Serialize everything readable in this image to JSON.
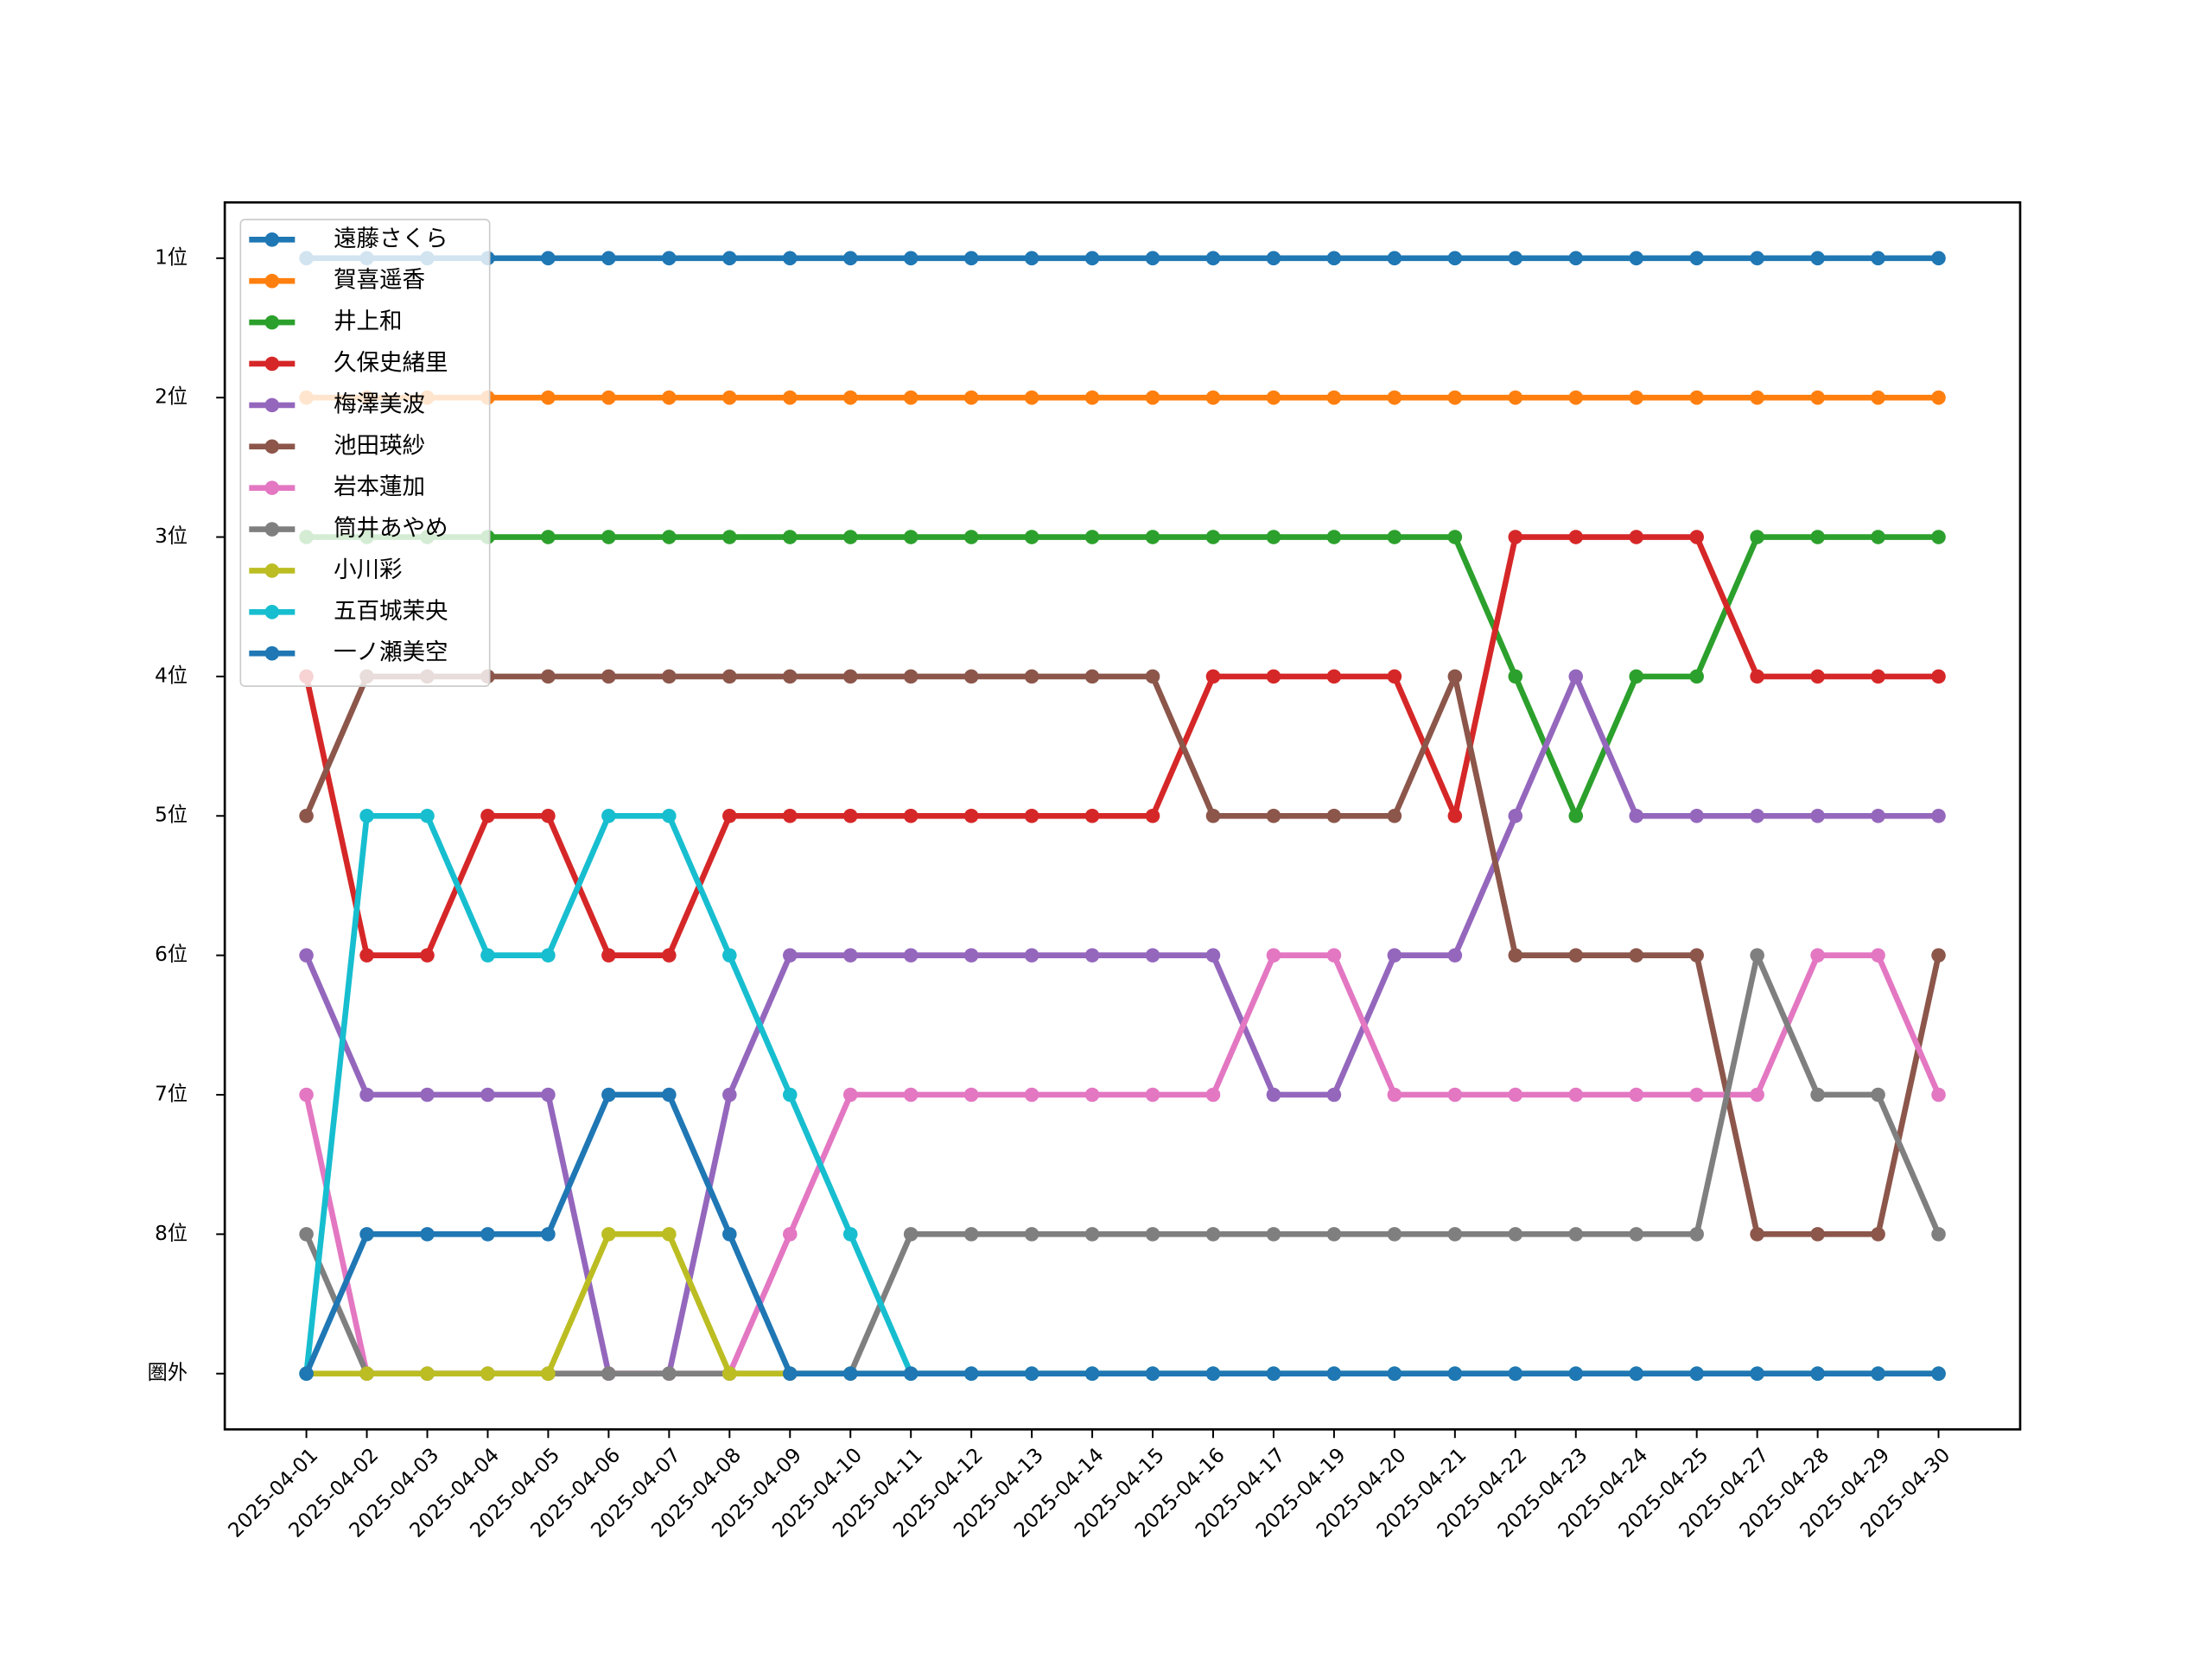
{
  "chart_data": {
    "type": "line",
    "categories": [
      "2025-04-01",
      "2025-04-02",
      "2025-04-03",
      "2025-04-04",
      "2025-04-05",
      "2025-04-06",
      "2025-04-07",
      "2025-04-08",
      "2025-04-09",
      "2025-04-10",
      "2025-04-11",
      "2025-04-12",
      "2025-04-13",
      "2025-04-14",
      "2025-04-15",
      "2025-04-16",
      "2025-04-17",
      "2025-04-19",
      "2025-04-20",
      "2025-04-21",
      "2025-04-22",
      "2025-04-23",
      "2025-04-24",
      "2025-04-25",
      "2025-04-27",
      "2025-04-28",
      "2025-04-29",
      "2025-04-30"
    ],
    "series": [
      {
        "name": "遠藤さくら",
        "color": "#1f77b4",
        "values": [
          1,
          1,
          1,
          1,
          1,
          1,
          1,
          1,
          1,
          1,
          1,
          1,
          1,
          1,
          1,
          1,
          1,
          1,
          1,
          1,
          1,
          1,
          1,
          1,
          1,
          1,
          1,
          1
        ]
      },
      {
        "name": "賀喜遥香",
        "color": "#ff7f0e",
        "values": [
          2,
          2,
          2,
          2,
          2,
          2,
          2,
          2,
          2,
          2,
          2,
          2,
          2,
          2,
          2,
          2,
          2,
          2,
          2,
          2,
          2,
          2,
          2,
          2,
          2,
          2,
          2,
          2
        ]
      },
      {
        "name": "井上和",
        "color": "#2ca02c",
        "values": [
          3,
          3,
          3,
          3,
          3,
          3,
          3,
          3,
          3,
          3,
          3,
          3,
          3,
          3,
          3,
          3,
          3,
          3,
          3,
          3,
          4,
          5,
          4,
          4,
          3,
          3,
          3,
          3
        ]
      },
      {
        "name": "久保史緒里",
        "color": "#d62728",
        "values": [
          4,
          6,
          6,
          5,
          5,
          6,
          6,
          5,
          5,
          5,
          5,
          5,
          5,
          5,
          5,
          4,
          4,
          4,
          4,
          5,
          3,
          3,
          3,
          3,
          4,
          4,
          4,
          4
        ]
      },
      {
        "name": "梅澤美波",
        "color": "#9467bd",
        "values": [
          6,
          7,
          7,
          7,
          7,
          9,
          9,
          7,
          6,
          6,
          6,
          6,
          6,
          6,
          6,
          6,
          7,
          7,
          6,
          6,
          5,
          4,
          5,
          5,
          5,
          5,
          5,
          5
        ]
      },
      {
        "name": "池田瑛紗",
        "color": "#8c564b",
        "values": [
          5,
          4,
          4,
          4,
          4,
          4,
          4,
          4,
          4,
          4,
          4,
          4,
          4,
          4,
          4,
          5,
          5,
          5,
          5,
          4,
          6,
          6,
          6,
          6,
          8,
          8,
          8,
          6
        ]
      },
      {
        "name": "岩本蓮加",
        "color": "#e377c2",
        "values": [
          7,
          9,
          9,
          9,
          9,
          9,
          9,
          9,
          8,
          7,
          7,
          7,
          7,
          7,
          7,
          7,
          6,
          6,
          7,
          7,
          7,
          7,
          7,
          7,
          7,
          6,
          6,
          7
        ]
      },
      {
        "name": "筒井あやめ",
        "color": "#7f7f7f",
        "values": [
          8,
          9,
          9,
          9,
          9,
          9,
          9,
          9,
          9,
          9,
          8,
          8,
          8,
          8,
          8,
          8,
          8,
          8,
          8,
          8,
          8,
          8,
          8,
          8,
          6,
          7,
          7,
          8
        ]
      },
      {
        "name": "小川彩",
        "color": "#bcbd22",
        "values": [
          9,
          9,
          9,
          9,
          9,
          8,
          8,
          9,
          9,
          9,
          9,
          9,
          9,
          9,
          9,
          9,
          9,
          9,
          9,
          9,
          9,
          9,
          9,
          9,
          9,
          9,
          9,
          9
        ]
      },
      {
        "name": "五百城茉央",
        "color": "#17becf",
        "values": [
          9,
          5,
          5,
          6,
          6,
          5,
          5,
          6,
          7,
          8,
          9,
          9,
          9,
          9,
          9,
          9,
          9,
          9,
          9,
          9,
          9,
          9,
          9,
          9,
          9,
          9,
          9,
          9
        ]
      },
      {
        "name": "一ノ瀬美空",
        "color": "#1f77b4",
        "values": [
          9,
          8,
          8,
          8,
          8,
          7,
          7,
          8,
          9,
          9,
          9,
          9,
          9,
          9,
          9,
          9,
          9,
          9,
          9,
          9,
          9,
          9,
          9,
          9,
          9,
          9,
          9,
          9
        ]
      }
    ],
    "ylim": [
      9.4,
      0.6
    ],
    "yticks": [
      {
        "value": 1,
        "label": "1位"
      },
      {
        "value": 2,
        "label": "2位"
      },
      {
        "value": 3,
        "label": "3位"
      },
      {
        "value": 4,
        "label": "4位"
      },
      {
        "value": 5,
        "label": "5位"
      },
      {
        "value": 6,
        "label": "6位"
      },
      {
        "value": 7,
        "label": "7位"
      },
      {
        "value": 8,
        "label": "8位"
      },
      {
        "value": 9,
        "label": "圏外"
      }
    ],
    "legend": "upper left"
  }
}
